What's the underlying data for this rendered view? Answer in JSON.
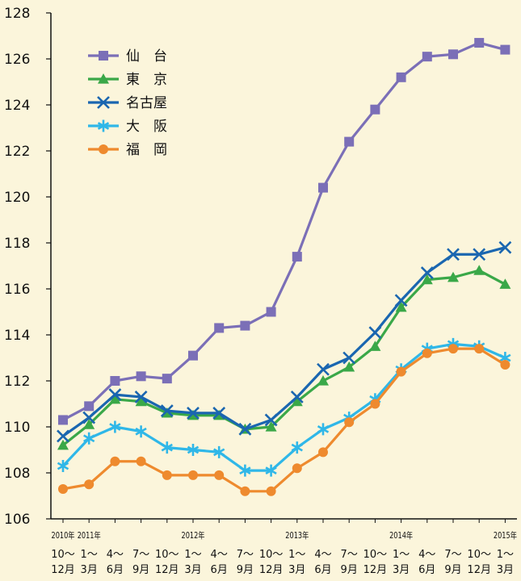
{
  "chart_data": {
    "type": "line",
    "ylim": [
      106,
      128
    ],
    "yticks": [
      106,
      108,
      110,
      112,
      114,
      116,
      118,
      120,
      122,
      124,
      126,
      128
    ],
    "categories": [
      {
        "year": "2010年",
        "period": "10～12月",
        "l1": "10～",
        "l2": "12月"
      },
      {
        "year": "2011年",
        "period": "1～3月",
        "l1": "1～",
        "l2": "3月"
      },
      {
        "year": "",
        "period": "4～6月",
        "l1": "4～",
        "l2": "6月"
      },
      {
        "year": "",
        "period": "7～9月",
        "l1": "7～",
        "l2": "9月"
      },
      {
        "year": "",
        "period": "10～12月",
        "l1": "10～",
        "l2": "12月"
      },
      {
        "year": "2012年",
        "period": "1～3月",
        "l1": "1～",
        "l2": "3月"
      },
      {
        "year": "",
        "period": "4～6月",
        "l1": "4～",
        "l2": "6月"
      },
      {
        "year": "",
        "period": "7～9月",
        "l1": "7～",
        "l2": "9月"
      },
      {
        "year": "",
        "period": "10～12月",
        "l1": "10～",
        "l2": "12月"
      },
      {
        "year": "2013年",
        "period": "1～3月",
        "l1": "1～",
        "l2": "3月"
      },
      {
        "year": "",
        "period": "4～6月",
        "l1": "4～",
        "l2": "6月"
      },
      {
        "year": "",
        "period": "7～9月",
        "l1": "7～",
        "l2": "9月"
      },
      {
        "year": "",
        "period": "10～12月",
        "l1": "10～",
        "l2": "12月"
      },
      {
        "year": "2014年",
        "period": "1～3月",
        "l1": "1～",
        "l2": "3月"
      },
      {
        "year": "",
        "period": "4～6月",
        "l1": "4～",
        "l2": "6月"
      },
      {
        "year": "",
        "period": "7～9月",
        "l1": "7～",
        "l2": "9月"
      },
      {
        "year": "",
        "period": "10～12月",
        "l1": "10～",
        "l2": "12月"
      },
      {
        "year": "2015年",
        "period": "1～3月",
        "l1": "1～",
        "l2": "3月"
      }
    ],
    "series": [
      {
        "name": "仙　台",
        "key": "sendai",
        "marker": "square",
        "color": "#7b6fb7",
        "values": [
          110.3,
          110.9,
          112.0,
          112.2,
          112.1,
          113.1,
          114.3,
          114.4,
          115.0,
          117.4,
          120.4,
          122.4,
          123.8,
          125.2,
          126.1,
          126.2,
          126.7,
          126.4
        ]
      },
      {
        "name": "東　京",
        "key": "tokyo",
        "marker": "triangle",
        "color": "#3aa848",
        "values": [
          109.2,
          110.1,
          111.2,
          111.1,
          110.6,
          110.5,
          110.5,
          109.9,
          110.0,
          111.1,
          112.0,
          112.6,
          113.5,
          115.2,
          116.4,
          116.5,
          116.8,
          116.2
        ]
      },
      {
        "name": "名古屋",
        "key": "nagoya",
        "marker": "x",
        "color": "#1a66b0",
        "values": [
          109.6,
          110.4,
          111.4,
          111.3,
          110.7,
          110.6,
          110.6,
          109.9,
          110.3,
          111.3,
          112.5,
          113.0,
          114.1,
          115.5,
          116.7,
          117.5,
          117.5,
          117.8
        ]
      },
      {
        "name": "大　阪",
        "key": "osaka",
        "marker": "asterisk",
        "color": "#2fb7e8",
        "values": [
          108.3,
          109.5,
          110.0,
          109.8,
          109.1,
          109.0,
          108.9,
          108.1,
          108.1,
          109.1,
          109.9,
          110.4,
          111.2,
          112.5,
          113.4,
          113.6,
          113.5,
          113.0
        ]
      },
      {
        "name": "福　岡",
        "key": "fukuoka",
        "marker": "circle",
        "color": "#ee8a2e",
        "values": [
          107.3,
          107.5,
          108.5,
          108.5,
          107.9,
          107.9,
          107.9,
          107.2,
          107.2,
          108.2,
          108.9,
          110.2,
          111.0,
          112.4,
          113.2,
          113.4,
          113.4,
          112.7
        ]
      }
    ],
    "legend_position": "top-left",
    "grid": false
  }
}
